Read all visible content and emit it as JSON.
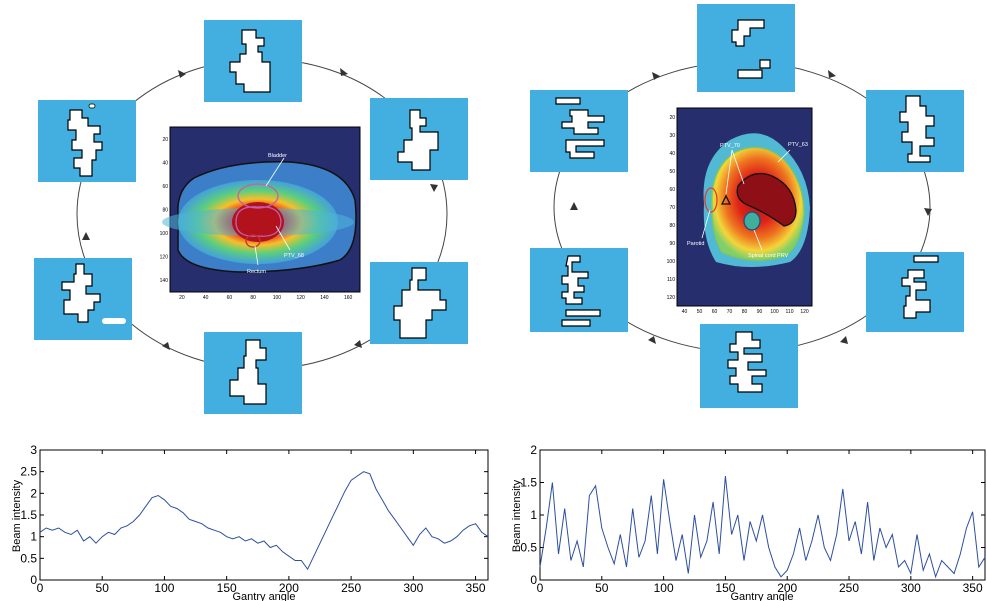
{
  "colors": {
    "tile": "#43aee0",
    "heat_bg": "#262e6e",
    "plot_line": "#2d4fa0",
    "axis": "#000000"
  },
  "left_diagram": {
    "contour_labels": {
      "bladder": "Bladder",
      "ptv": "PTV_68",
      "rectum": "Rectum"
    },
    "x_ticks": [
      "20",
      "40",
      "60",
      "80",
      "100",
      "120",
      "140",
      "160"
    ],
    "y_ticks": [
      "20",
      "40",
      "60",
      "80",
      "100",
      "120",
      "140"
    ]
  },
  "right_diagram": {
    "contour_labels": {
      "ptv70": "PTV_70",
      "ptv63": "PTV_63",
      "parotid": "Parotid",
      "cord": "Spinal cord PRV"
    },
    "x_ticks": [
      "40",
      "50",
      "60",
      "70",
      "80",
      "90",
      "100",
      "110",
      "120"
    ],
    "y_ticks": [
      "20",
      "30",
      "40",
      "50",
      "60",
      "70",
      "80",
      "90",
      "100",
      "110",
      "120"
    ]
  },
  "chart_data": [
    {
      "type": "line",
      "xlabel": "Gantry  angle",
      "ylabel": "Beam  intensity",
      "xlim": [
        0,
        360
      ],
      "ylim": [
        0,
        3
      ],
      "x_ticks": [
        "0",
        "50",
        "100",
        "150",
        "200",
        "250",
        "300",
        "350"
      ],
      "y_ticks": [
        "0",
        "0.5",
        "1",
        "1.5",
        "2",
        "2.5",
        "3"
      ],
      "x": [
        0,
        5,
        10,
        15,
        20,
        25,
        30,
        35,
        40,
        45,
        50,
        55,
        60,
        65,
        70,
        75,
        80,
        85,
        90,
        95,
        100,
        105,
        110,
        115,
        120,
        125,
        130,
        135,
        140,
        145,
        150,
        155,
        160,
        165,
        170,
        175,
        180,
        185,
        190,
        195,
        200,
        205,
        210,
        215,
        220,
        225,
        230,
        235,
        240,
        245,
        250,
        255,
        260,
        265,
        270,
        275,
        280,
        285,
        290,
        295,
        300,
        305,
        310,
        315,
        320,
        325,
        330,
        335,
        340,
        345,
        350,
        355,
        360
      ],
      "values": [
        1.1,
        1.2,
        1.15,
        1.2,
        1.1,
        1.05,
        1.15,
        0.9,
        1.0,
        0.85,
        1.0,
        1.1,
        1.05,
        1.2,
        1.25,
        1.35,
        1.5,
        1.7,
        1.9,
        1.95,
        1.85,
        1.7,
        1.65,
        1.55,
        1.4,
        1.35,
        1.3,
        1.2,
        1.15,
        1.1,
        1.0,
        0.95,
        1.0,
        0.9,
        0.95,
        0.85,
        0.9,
        0.75,
        0.8,
        0.65,
        0.55,
        0.45,
        0.45,
        0.25,
        0.55,
        0.85,
        1.15,
        1.45,
        1.75,
        2.05,
        2.3,
        2.4,
        2.5,
        2.45,
        2.1,
        1.85,
        1.6,
        1.4,
        1.2,
        1.0,
        0.8,
        1.05,
        1.2,
        1.0,
        0.95,
        0.85,
        0.9,
        1.0,
        1.15,
        1.25,
        1.3,
        1.1,
        1.0
      ]
    },
    {
      "type": "line",
      "xlabel": "Gantry  angle",
      "ylabel": "Beam  intensity",
      "xlim": [
        0,
        360
      ],
      "ylim": [
        0,
        2
      ],
      "x_ticks": [
        "0",
        "50",
        "100",
        "150",
        "200",
        "250",
        "300",
        "350"
      ],
      "y_ticks": [
        "0",
        "0.5",
        "1",
        "1.5",
        "2"
      ],
      "x": [
        0,
        5,
        10,
        15,
        20,
        25,
        30,
        35,
        40,
        45,
        50,
        55,
        60,
        65,
        70,
        75,
        80,
        85,
        90,
        95,
        100,
        105,
        110,
        115,
        120,
        125,
        130,
        135,
        140,
        145,
        150,
        155,
        160,
        165,
        170,
        175,
        180,
        185,
        190,
        195,
        200,
        205,
        210,
        215,
        220,
        225,
        230,
        235,
        240,
        245,
        250,
        255,
        260,
        265,
        270,
        275,
        280,
        285,
        290,
        295,
        300,
        305,
        310,
        315,
        320,
        325,
        330,
        335,
        340,
        345,
        350,
        355,
        360
      ],
      "values": [
        0.2,
        0.8,
        1.5,
        0.4,
        1.1,
        0.3,
        0.6,
        0.2,
        1.3,
        1.45,
        0.8,
        0.5,
        0.25,
        0.7,
        0.2,
        1.1,
        0.35,
        0.6,
        1.3,
        0.4,
        1.55,
        0.9,
        0.3,
        0.7,
        0.1,
        1.0,
        0.35,
        0.6,
        1.2,
        0.4,
        1.6,
        0.7,
        1.0,
        0.3,
        0.9,
        0.6,
        1.0,
        0.5,
        0.2,
        0.05,
        0.15,
        0.4,
        0.8,
        0.3,
        0.6,
        1.0,
        0.5,
        0.3,
        0.7,
        1.4,
        0.6,
        0.9,
        0.4,
        1.2,
        0.3,
        0.8,
        0.5,
        0.7,
        0.2,
        0.3,
        0.1,
        0.7,
        0.15,
        0.4,
        0.05,
        0.3,
        0.2,
        0.1,
        0.4,
        0.8,
        1.05,
        0.2,
        0.35
      ]
    }
  ]
}
